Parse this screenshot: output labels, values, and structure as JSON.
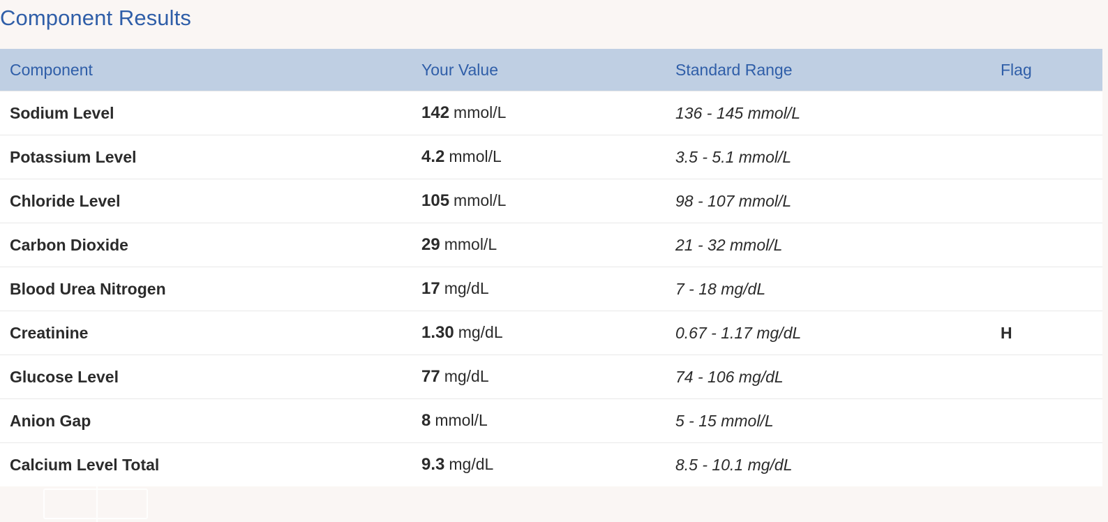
{
  "section_title": "Component Results",
  "columns": {
    "component": "Component",
    "value": "Your Value",
    "range": "Standard Range",
    "flag": "Flag"
  },
  "rows": [
    {
      "component": "Sodium Level",
      "value": "142",
      "unit": "mmol/L",
      "range": "136 - 145 mmol/L",
      "flag": ""
    },
    {
      "component": "Potassium Level",
      "value": "4.2",
      "unit": "mmol/L",
      "range": "3.5 - 5.1 mmol/L",
      "flag": ""
    },
    {
      "component": "Chloride Level",
      "value": "105",
      "unit": "mmol/L",
      "range": "98 - 107 mmol/L",
      "flag": ""
    },
    {
      "component": "Carbon Dioxide",
      "value": "29",
      "unit": "mmol/L",
      "range": "21 - 32 mmol/L",
      "flag": ""
    },
    {
      "component": "Blood Urea Nitrogen",
      "value": "17",
      "unit": "mg/dL",
      "range": "7 - 18 mg/dL",
      "flag": ""
    },
    {
      "component": "Creatinine",
      "value": "1.30",
      "unit": "mg/dL",
      "range": "0.67 - 1.17 mg/dL",
      "flag": "H"
    },
    {
      "component": "Glucose Level",
      "value": "77",
      "unit": "mg/dL",
      "range": "74 - 106 mg/dL",
      "flag": ""
    },
    {
      "component": "Anion Gap",
      "value": "8",
      "unit": "mmol/L",
      "range": "5 - 15 mmol/L",
      "flag": ""
    },
    {
      "component": "Calcium Level Total",
      "value": "9.3",
      "unit": "mg/dL",
      "range": "8.5 - 10.1 mg/dL",
      "flag": ""
    }
  ],
  "colors": {
    "accent": "#2f5ea8",
    "header_bg": "#bfcfe3",
    "page_bg": "#faf6f4"
  }
}
